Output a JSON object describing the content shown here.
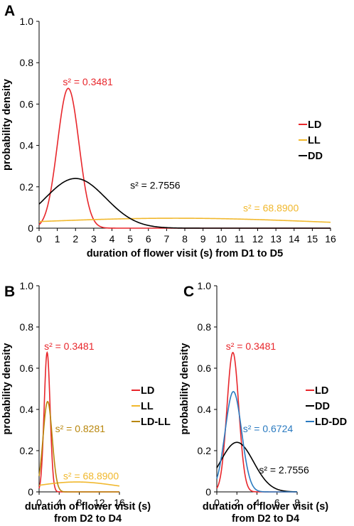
{
  "panels": [
    {
      "id": "A",
      "label": "A",
      "xlabel": [
        "duration of flower visit (s) from D1 to D5"
      ],
      "ylabel": "probability density",
      "chart_data_index": 0
    },
    {
      "id": "B",
      "label": "B",
      "xlabel": [
        "duration of flower visit (s)",
        "from D2 to D4"
      ],
      "ylabel": "probability density",
      "chart_data_index": 1
    },
    {
      "id": "C",
      "label": "C",
      "xlabel": [
        "duration of flower visit (s)",
        "from D2 to D4"
      ],
      "ylabel": "probability density",
      "chart_data_index": 2
    }
  ],
  "chart_data": [
    {
      "type": "line",
      "title": "",
      "xlabel": "duration of flower visit (s) from D1 to D5",
      "ylabel": "probability density",
      "xlim": [
        0,
        16
      ],
      "ylim": [
        0,
        1.0
      ],
      "xticks": [
        "0",
        "1",
        "2",
        "3",
        "4",
        "5",
        "6",
        "7",
        "8",
        "9",
        "10",
        "11",
        "12",
        "13",
        "14",
        "15",
        "16"
      ],
      "yticks": [
        "0",
        "0.2",
        "0.4",
        "0.6",
        "0.8",
        "1.0"
      ],
      "grid": false,
      "legend_position": "right",
      "series": [
        {
          "name": "LD",
          "color": "#e8262b",
          "distribution": "normal",
          "mean": 1.6,
          "variance": 0.3481
        },
        {
          "name": "LL",
          "color": "#f1b82d",
          "distribution": "normal",
          "mean": 7.5,
          "variance": 68.89
        },
        {
          "name": "DD",
          "color": "#000000",
          "distribution": "normal",
          "mean": 2.0,
          "variance": 2.7556
        }
      ],
      "annotations": [
        {
          "text": "s² = 0.3481",
          "color": "#e8262b",
          "x": 1.3,
          "y": 0.69
        },
        {
          "text": "s² = 2.7556",
          "color": "#000000",
          "x": 5.0,
          "y": 0.19
        },
        {
          "text": "s² = 68.8900",
          "color": "#f1b82d",
          "x": 11.2,
          "y": 0.08
        }
      ]
    },
    {
      "type": "line",
      "title": "",
      "xlabel": "duration of flower visit (s) from D2 to D4",
      "ylabel": "probability density",
      "xlim": [
        0,
        16
      ],
      "ylim": [
        0,
        1.0
      ],
      "xticks": [
        "0",
        "4",
        "8",
        "12",
        "16"
      ],
      "yticks": [
        "0",
        "0.2",
        "0.4",
        "0.6",
        "0.8",
        "1.0"
      ],
      "grid": false,
      "legend_position": "right",
      "series": [
        {
          "name": "LD",
          "color": "#e8262b",
          "distribution": "normal",
          "mean": 1.6,
          "variance": 0.3481
        },
        {
          "name": "LL",
          "color": "#f1b82d",
          "distribution": "normal",
          "mean": 7.5,
          "variance": 68.89
        },
        {
          "name": "LD-LL",
          "color": "#b8860b",
          "distribution": "normal",
          "mean": 1.7,
          "variance": 0.8281
        }
      ],
      "annotations": [
        {
          "text": "s² = 0.3481",
          "color": "#e8262b",
          "x": 1.0,
          "y": 0.69
        },
        {
          "text": "s² = 0.8281",
          "color": "#b8860b",
          "x": 3.2,
          "y": 0.29
        },
        {
          "text": "s² = 68.8900",
          "color": "#f1b82d",
          "x": 4.8,
          "y": 0.06
        }
      ]
    },
    {
      "type": "line",
      "title": "",
      "xlabel": "duration of flower visit (s) from D2 to D4",
      "ylabel": "probability density",
      "xlim": [
        0,
        8
      ],
      "ylim": [
        0,
        1.0
      ],
      "xticks": [
        "0",
        "2",
        "4",
        "6",
        "8"
      ],
      "yticks": [
        "0",
        "0.2",
        "0.4",
        "0.6",
        "0.8",
        "1.0"
      ],
      "grid": false,
      "legend_position": "right",
      "series": [
        {
          "name": "LD",
          "color": "#e8262b",
          "distribution": "normal",
          "mean": 1.6,
          "variance": 0.3481
        },
        {
          "name": "DD",
          "color": "#000000",
          "distribution": "normal",
          "mean": 2.0,
          "variance": 2.7556
        },
        {
          "name": "LD-DD",
          "color": "#2a7ac0",
          "distribution": "normal",
          "mean": 1.65,
          "variance": 0.6724
        }
      ],
      "annotations": [
        {
          "text": "s² = 0.3481",
          "color": "#e8262b",
          "x": 0.9,
          "y": 0.69
        },
        {
          "text": "s² = 0.6724",
          "color": "#2a7ac0",
          "x": 2.6,
          "y": 0.29
        },
        {
          "text": "s² = 2.7556",
          "color": "#000000",
          "x": 4.2,
          "y": 0.09
        }
      ]
    }
  ]
}
